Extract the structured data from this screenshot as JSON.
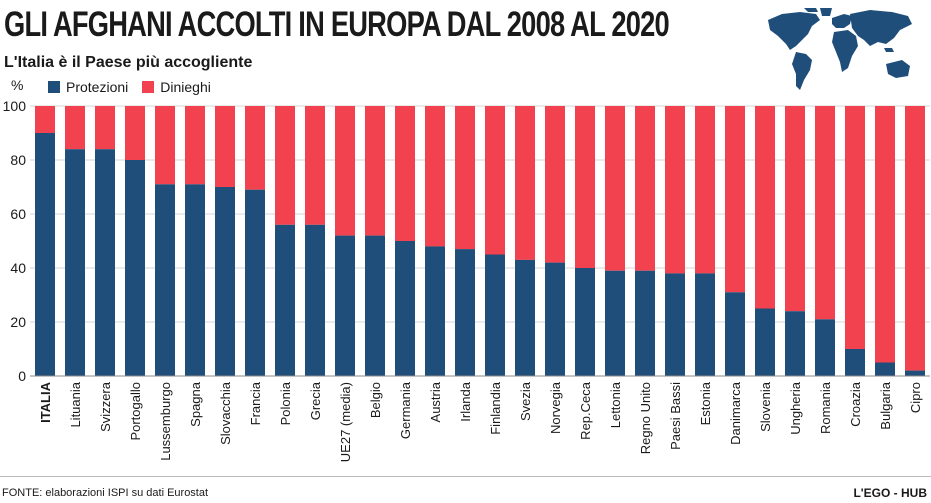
{
  "header": {
    "title": "GLI AFGHANI ACCOLTI IN EUROPA DAL 2008 AL 2020",
    "subtitle": "L'Italia è il Paese più accogliente"
  },
  "legend": {
    "protezioni": "Protezioni",
    "dinieghi": "Dinieghi"
  },
  "footer": {
    "source": "FONTE: elaborazioni ISPI su dati Eurostat",
    "brand": "L'EGO - HUB"
  },
  "colors": {
    "protezioni": "#1f4e7a",
    "dinieghi": "#f2414f",
    "map": "#1f4e7a"
  },
  "chart_data": {
    "type": "bar",
    "stacked": true,
    "ylabel": "%",
    "ylim": [
      0,
      100
    ],
    "yticks": [
      0,
      20,
      40,
      60,
      80,
      100
    ],
    "grid": true,
    "legend_position": "top-left",
    "categories": [
      "ITALIA",
      "Lituania",
      "Svizzera",
      "Portogallo",
      "Lussemburgo",
      "Spagna",
      "Slovacchia",
      "Francia",
      "Polonia",
      "Grecia",
      "UE27 (media)",
      "Belgio",
      "Germania",
      "Austria",
      "Irlanda",
      "Finlandia",
      "Svezia",
      "Norvegia",
      "Rep.Ceca",
      "Lettonia",
      "Regno Unito",
      "Paesi Bassi",
      "Estonia",
      "Danimarca",
      "Slovenia",
      "Ungheria",
      "Romania",
      "Croazia",
      "Bulgaria",
      "Cipro"
    ],
    "series": [
      {
        "name": "Protezioni",
        "values": [
          90,
          84,
          84,
          80,
          71,
          71,
          70,
          69,
          56,
          56,
          52,
          52,
          50,
          48,
          47,
          45,
          43,
          42,
          40,
          39,
          39,
          38,
          38,
          31,
          25,
          24,
          21,
          10,
          5,
          2
        ]
      },
      {
        "name": "Dinieghi",
        "values": [
          10,
          16,
          16,
          20,
          29,
          29,
          30,
          31,
          44,
          44,
          48,
          48,
          50,
          52,
          53,
          55,
          57,
          58,
          60,
          61,
          61,
          62,
          62,
          69,
          75,
          76,
          79,
          90,
          95,
          98
        ]
      }
    ]
  }
}
